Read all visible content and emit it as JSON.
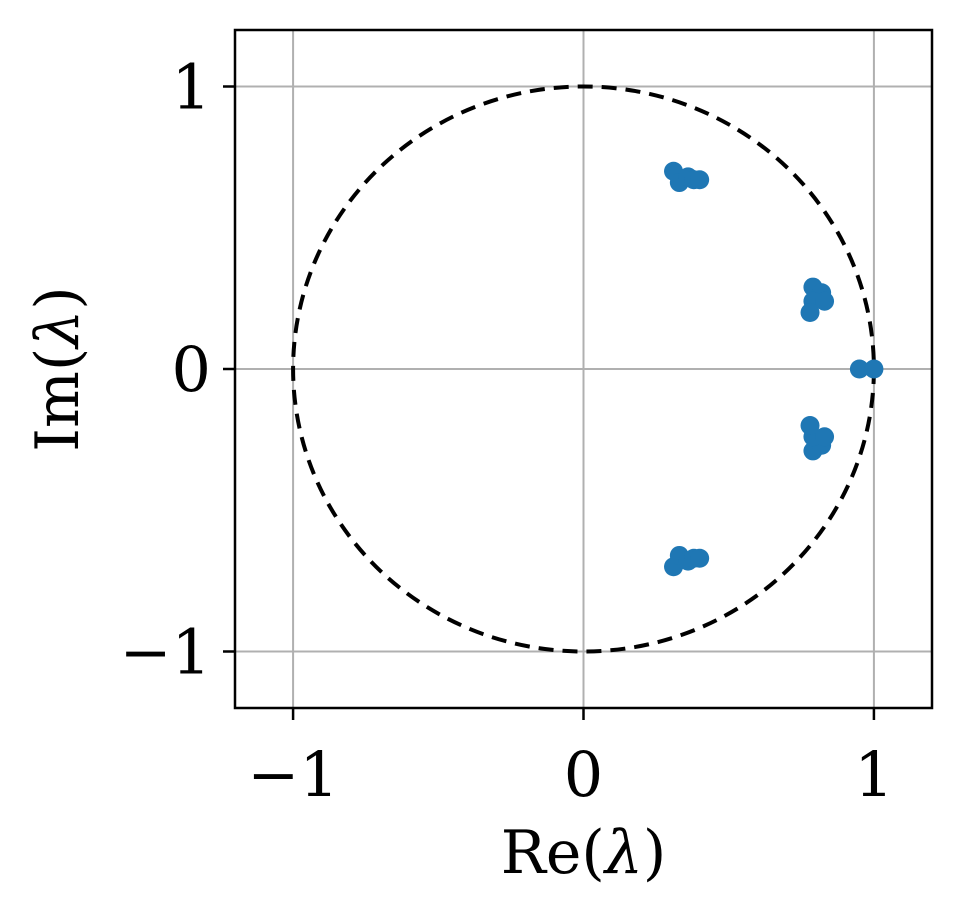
{
  "chart_data": {
    "type": "scatter",
    "xlabel": {
      "pre": "Re(",
      "sym": "λ",
      "post": ")"
    },
    "ylabel": {
      "pre": "Im(",
      "sym": "λ",
      "post": ")"
    },
    "xlim": [
      -1.2,
      1.2
    ],
    "ylim": [
      -1.2,
      1.2
    ],
    "x_ticks": [
      {
        "value": -1,
        "label": "−1"
      },
      {
        "value": 0,
        "label": "0"
      },
      {
        "value": 1,
        "label": "1"
      }
    ],
    "y_ticks": [
      {
        "value": 1,
        "label": "1"
      },
      {
        "value": 0,
        "label": "0"
      },
      {
        "value": -1,
        "label": "−1"
      }
    ],
    "grid": true,
    "unit_circle": {
      "radius": 1,
      "style": "dashed",
      "color": "#000000"
    },
    "marker_color": "#1f77b4",
    "points": [
      {
        "x": 0.31,
        "y": 0.7
      },
      {
        "x": 0.33,
        "y": 0.66
      },
      {
        "x": 0.36,
        "y": 0.68
      },
      {
        "x": 0.38,
        "y": 0.67
      },
      {
        "x": 0.4,
        "y": 0.67
      },
      {
        "x": 0.31,
        "y": -0.7
      },
      {
        "x": 0.33,
        "y": -0.66
      },
      {
        "x": 0.36,
        "y": -0.68
      },
      {
        "x": 0.38,
        "y": -0.67
      },
      {
        "x": 0.4,
        "y": -0.67
      },
      {
        "x": 0.79,
        "y": 0.29
      },
      {
        "x": 0.82,
        "y": 0.27
      },
      {
        "x": 0.79,
        "y": 0.24
      },
      {
        "x": 0.83,
        "y": 0.24
      },
      {
        "x": 0.78,
        "y": 0.2
      },
      {
        "x": 0.79,
        "y": -0.29
      },
      {
        "x": 0.82,
        "y": -0.27
      },
      {
        "x": 0.79,
        "y": -0.24
      },
      {
        "x": 0.83,
        "y": -0.24
      },
      {
        "x": 0.78,
        "y": -0.2
      },
      {
        "x": 0.95,
        "y": 0.0
      },
      {
        "x": 1.0,
        "y": 0.0
      }
    ]
  }
}
